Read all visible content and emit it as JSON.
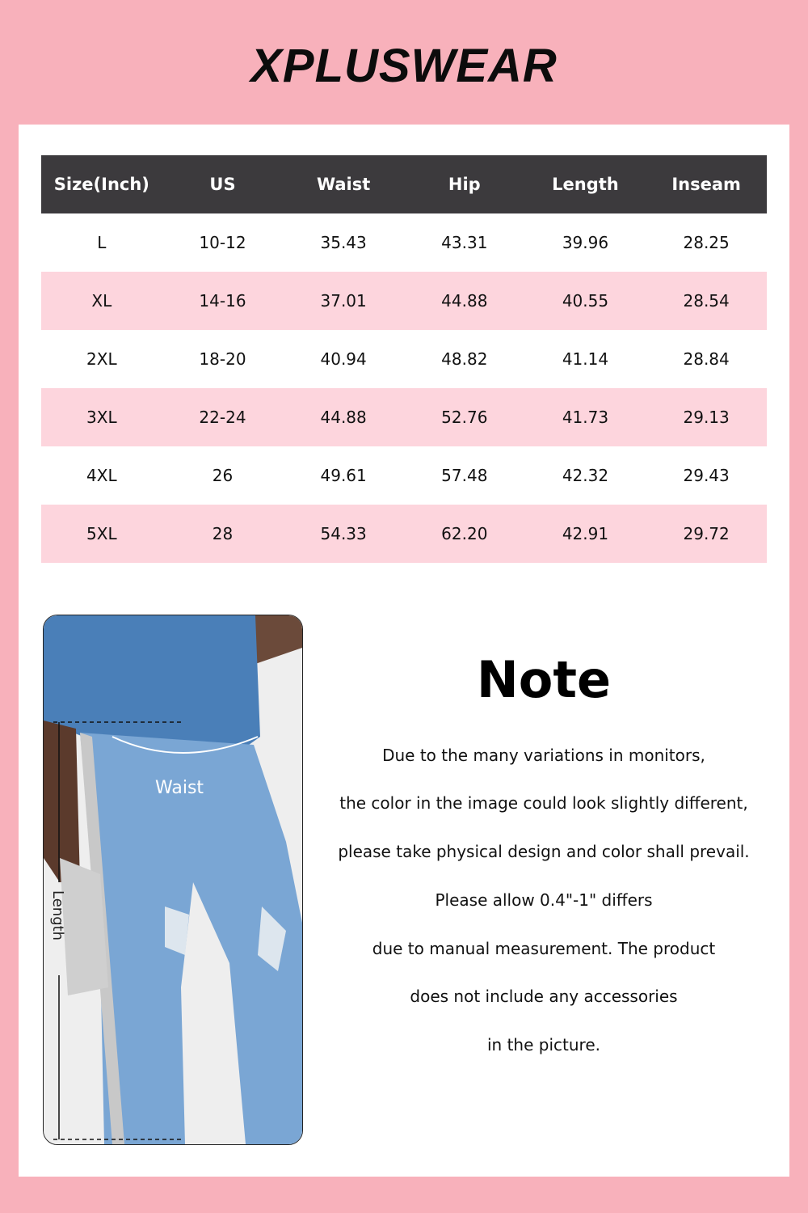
{
  "brand": {
    "logo_text": "XPLUSWEAR"
  },
  "colors": {
    "background": "#f8b1bb",
    "header": "#3c3a3d",
    "row_alt": "#fdd5dd"
  },
  "table": {
    "headers": [
      "Size(Inch)",
      "US",
      "Waist",
      "Hip",
      "Length",
      "Inseam"
    ],
    "rows": [
      [
        "L",
        "10-12",
        "35.43",
        "43.31",
        "39.96",
        "28.25"
      ],
      [
        "XL",
        "14-16",
        "37.01",
        "44.88",
        "40.55",
        "28.54"
      ],
      [
        "2XL",
        "18-20",
        "40.94",
        "48.82",
        "41.14",
        "28.84"
      ],
      [
        "3XL",
        "22-24",
        "44.88",
        "52.76",
        "41.73",
        "29.13"
      ],
      [
        "4XL",
        "26",
        "49.61",
        "57.48",
        "42.32",
        "29.43"
      ],
      [
        "5XL",
        "28",
        "54.33",
        "62.20",
        "42.91",
        "29.72"
      ]
    ]
  },
  "photo": {
    "waist_label": "Waist",
    "length_label": "Length"
  },
  "note": {
    "title": "Note",
    "lines": [
      "Due to the many variations in monitors,",
      "the color in the image could look slightly different,",
      "please take physical design and color shall prevail.",
      "Please allow 0.4\"-1\" differs",
      "due to manual measurement. The product",
      "does not include any accessories",
      "in the picture."
    ]
  }
}
